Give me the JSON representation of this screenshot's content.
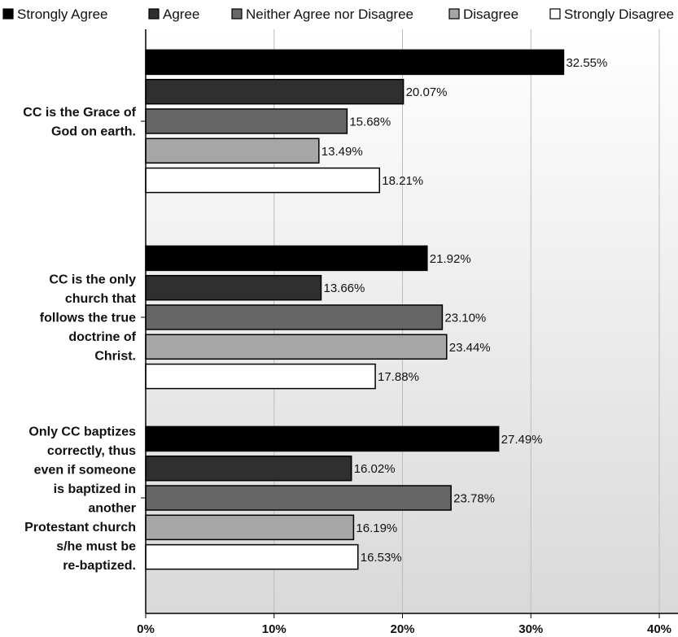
{
  "chart_data": {
    "type": "bar",
    "orientation": "horizontal",
    "categories": [
      [
        "CC is the Grace of",
        "God on earth."
      ],
      [
        "CC is the only",
        "church that",
        "follows the true",
        "doctrine of",
        "Christ."
      ],
      [
        "Only CC baptizes",
        "correctly, thus",
        "even if someone",
        "is baptized in",
        "another",
        "Protestant church",
        "s/he must be",
        "re-baptized."
      ]
    ],
    "series": [
      {
        "name": "Strongly Agree",
        "color": "#000000",
        "values": [
          32.55,
          21.92,
          27.49
        ],
        "labels": [
          "32.55%",
          "21.92%",
          "27.49%"
        ]
      },
      {
        "name": "Agree",
        "color": "#2f2f2f",
        "values": [
          20.07,
          13.66,
          16.02
        ],
        "labels": [
          "20.07%",
          "13.66%",
          "16.02%"
        ]
      },
      {
        "name": "Neither Agree nor Disagree",
        "color": "#666666",
        "values": [
          15.68,
          23.1,
          23.78
        ],
        "labels": [
          "15.68%",
          "23.10%",
          "23.78%"
        ]
      },
      {
        "name": "Disagree",
        "color": "#a6a6a6",
        "values": [
          13.49,
          23.44,
          16.19
        ],
        "labels": [
          "13.49%",
          "23.44%",
          "16.19%"
        ]
      },
      {
        "name": "Strongly Disagree",
        "color": "#ffffff",
        "values": [
          18.21,
          17.88,
          16.53
        ],
        "labels": [
          "18.21%",
          "17.88%",
          "16.53%"
        ]
      }
    ],
    "xlim": [
      0,
      40
    ],
    "xticks": [
      0,
      10,
      20,
      30,
      40
    ],
    "xtick_labels": [
      "0%",
      "10%",
      "20%",
      "30%",
      "40%"
    ],
    "grid": true,
    "legend_position": "top"
  }
}
